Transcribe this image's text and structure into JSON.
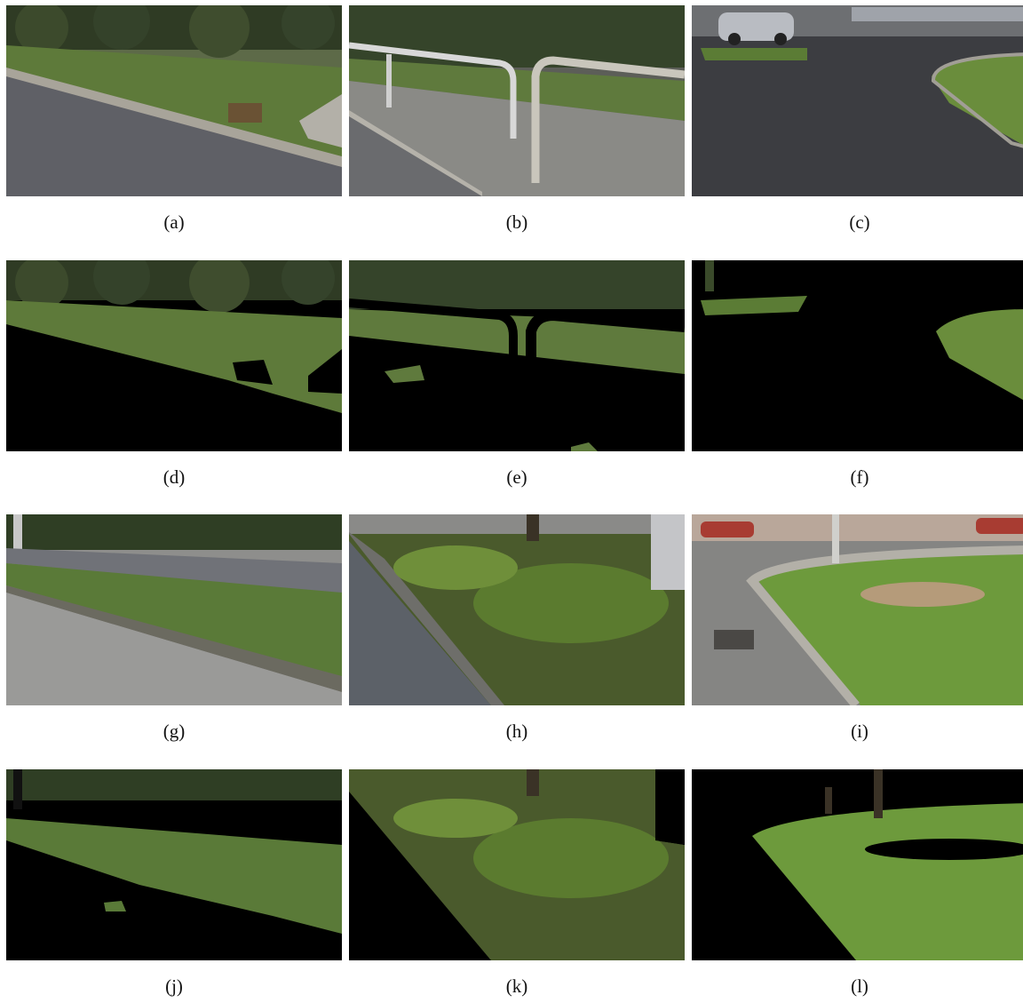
{
  "figure": {
    "panels": [
      {
        "id": "a",
        "caption": "(a)"
      },
      {
        "id": "b",
        "caption": "(b)"
      },
      {
        "id": "c",
        "caption": "(c)"
      },
      {
        "id": "d",
        "caption": "(d)"
      },
      {
        "id": "e",
        "caption": "(e)"
      },
      {
        "id": "f",
        "caption": "(f)"
      },
      {
        "id": "g",
        "caption": "(g)"
      },
      {
        "id": "h",
        "caption": "(h)"
      },
      {
        "id": "i",
        "caption": "(i)"
      },
      {
        "id": "j",
        "caption": "(j)"
      },
      {
        "id": "k",
        "caption": "(k)"
      },
      {
        "id": "l",
        "caption": "(l)"
      }
    ]
  }
}
